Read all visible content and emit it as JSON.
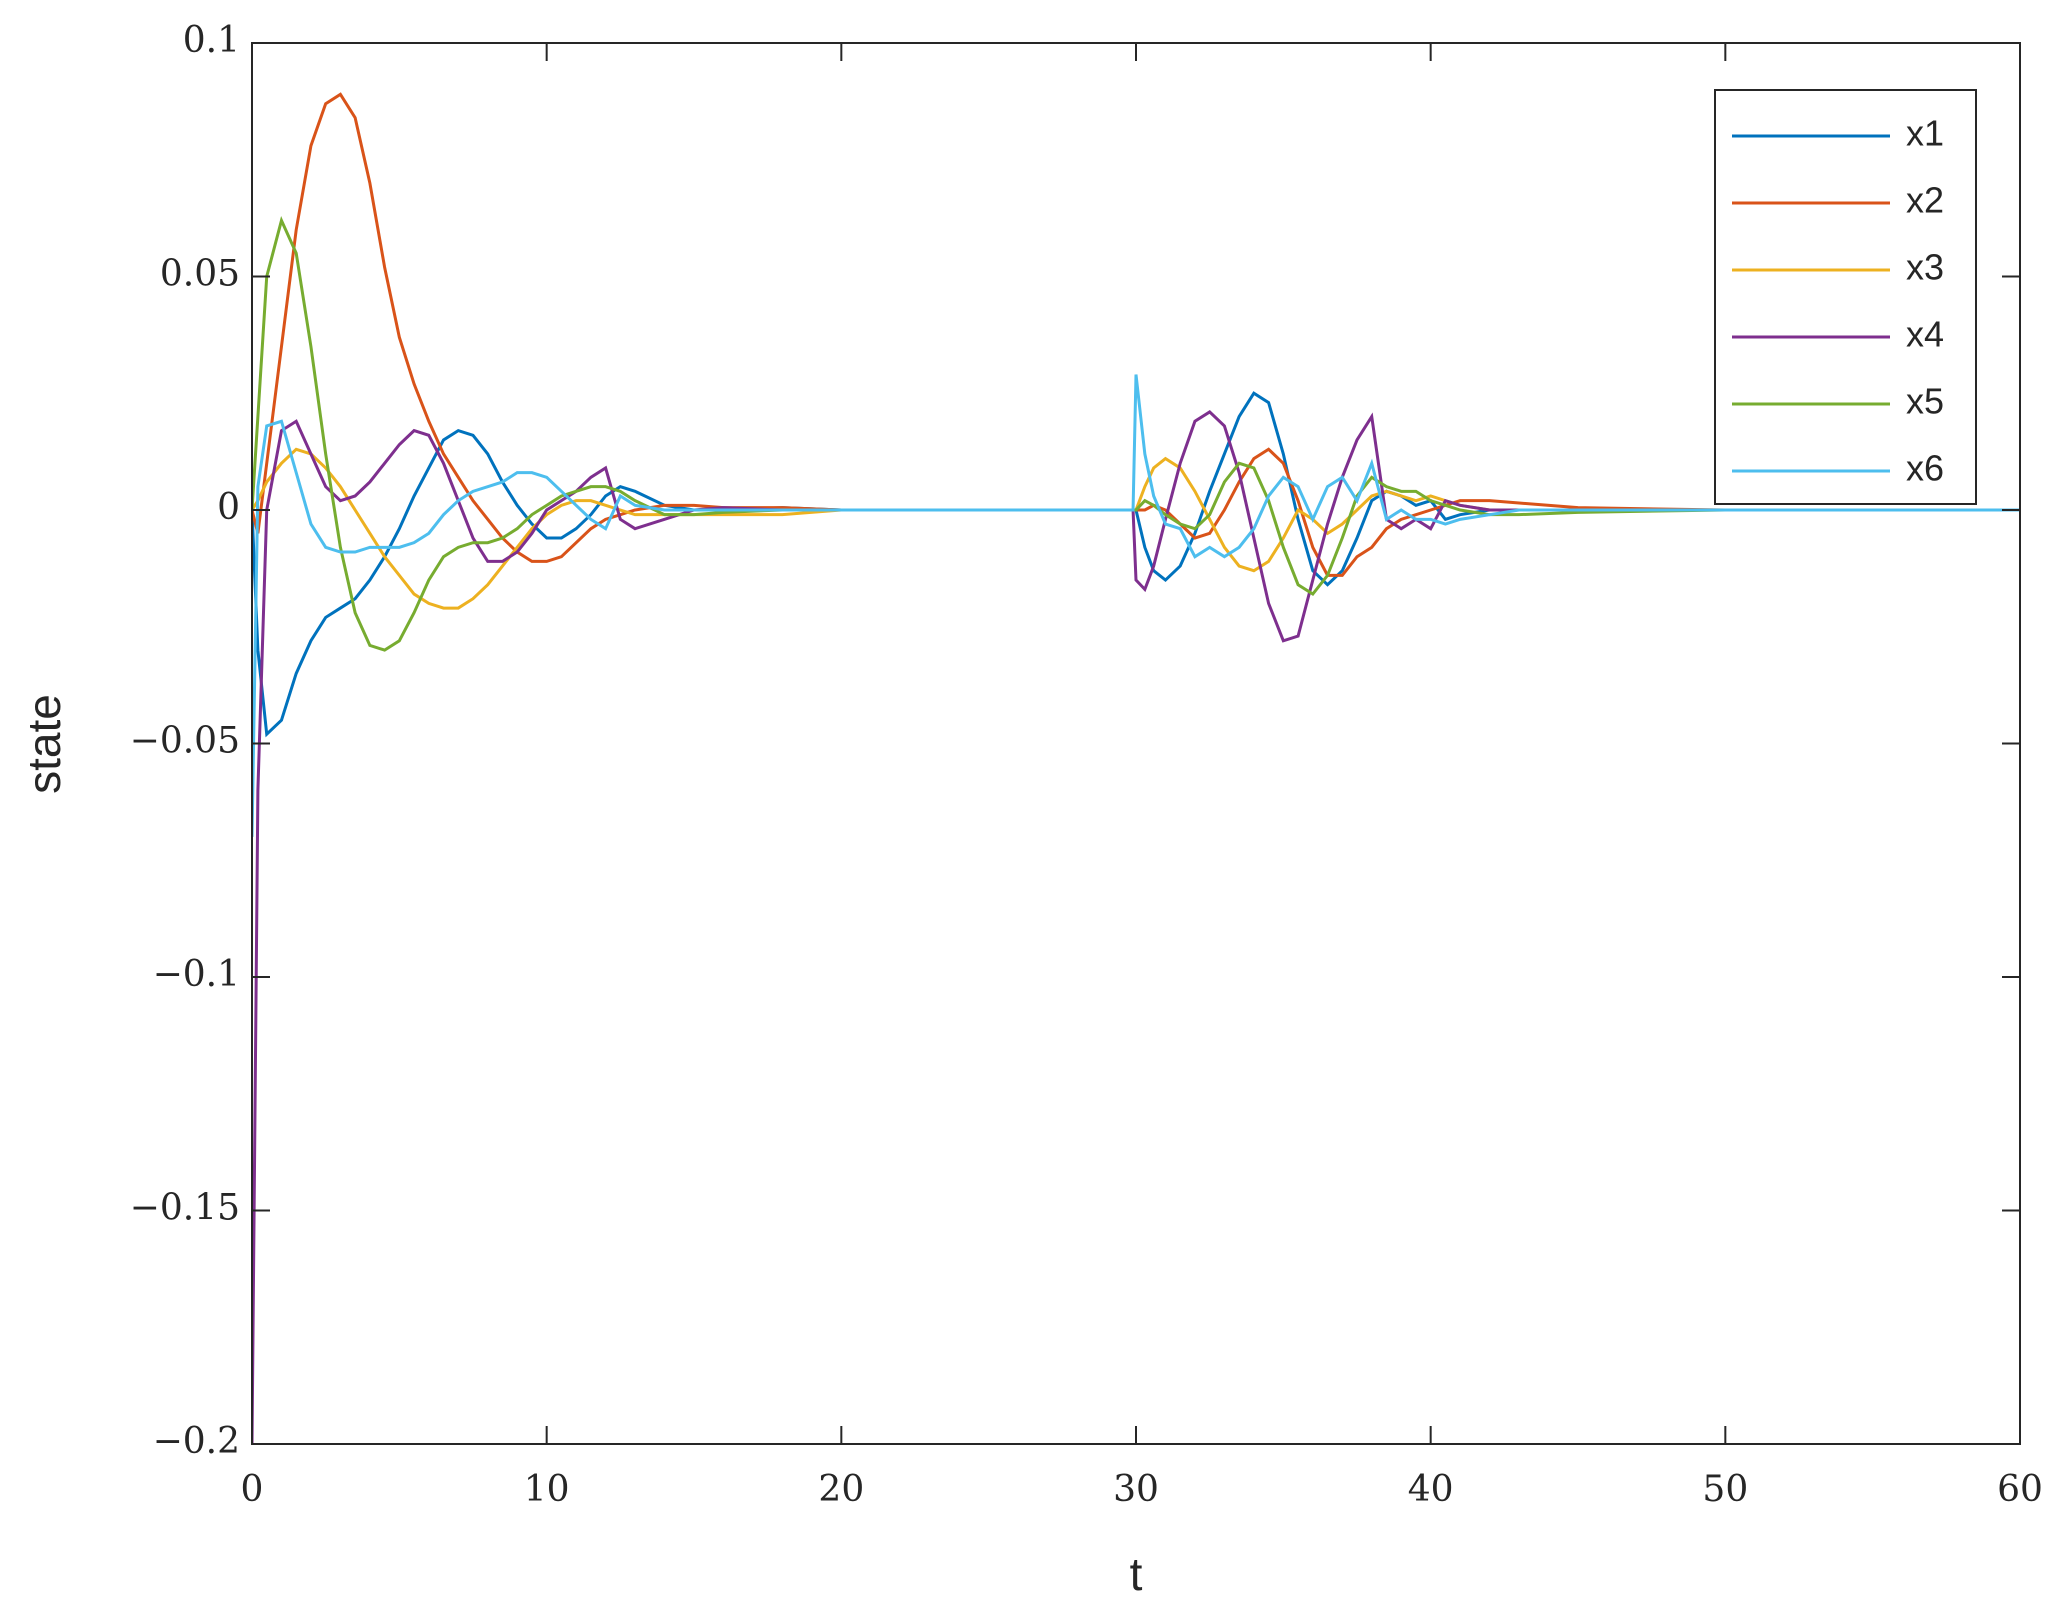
{
  "chart_data": {
    "type": "line",
    "xlabel": "t",
    "ylabel": "state",
    "x": [
      0,
      0.2,
      0.5,
      1,
      1.5,
      2,
      2.5,
      3,
      3.5,
      4,
      4.5,
      5,
      5.5,
      6,
      6.5,
      7,
      7.5,
      8,
      8.5,
      9,
      9.5,
      10,
      10.5,
      11,
      11.5,
      12,
      12.5,
      13,
      14,
      15,
      16,
      18,
      20,
      25,
      29.9,
      30,
      30.3,
      30.6,
      31,
      31.5,
      32,
      32.5,
      33,
      33.5,
      34,
      34.5,
      35,
      35.5,
      36,
      36.5,
      37,
      37.5,
      38,
      38.5,
      39,
      39.5,
      40,
      40.5,
      41,
      42,
      43,
      45,
      50,
      60
    ],
    "series": [
      {
        "name": "x1",
        "color": "#0072BD",
        "values": [
          0,
          -0.03,
          -0.048,
          -0.045,
          -0.035,
          -0.028,
          -0.023,
          -0.021,
          -0.019,
          -0.015,
          -0.01,
          -0.004,
          0.003,
          0.009,
          0.015,
          0.017,
          0.016,
          0.012,
          0.006,
          0.001,
          -0.003,
          -0.006,
          -0.006,
          -0.004,
          -0.001,
          0.003,
          0.005,
          0.004,
          0.001,
          0,
          0,
          0.0005,
          0,
          0,
          0,
          0,
          -0.008,
          -0.013,
          -0.015,
          -0.012,
          -0.005,
          0.004,
          0.012,
          0.02,
          0.025,
          0.023,
          0.012,
          -0.002,
          -0.013,
          -0.016,
          -0.013,
          -0.006,
          0.002,
          0.004,
          0.003,
          0.001,
          0.002,
          -0.002,
          -0.001,
          0,
          0,
          0,
          0,
          0
        ]
      },
      {
        "name": "x2",
        "color": "#D95319",
        "values": [
          0,
          -0.005,
          0.01,
          0.035,
          0.06,
          0.078,
          0.087,
          0.089,
          0.084,
          0.07,
          0.052,
          0.037,
          0.027,
          0.019,
          0.012,
          0.007,
          0.002,
          -0.002,
          -0.006,
          -0.009,
          -0.011,
          -0.011,
          -0.01,
          -0.007,
          -0.004,
          -0.002,
          -0.001,
          0,
          0.001,
          0.001,
          0.0005,
          0.0005,
          0,
          0,
          0,
          0,
          0,
          0.001,
          0,
          -0.003,
          -0.006,
          -0.005,
          0,
          0.006,
          0.011,
          0.013,
          0.01,
          0.002,
          -0.008,
          -0.014,
          -0.014,
          -0.01,
          -0.008,
          -0.004,
          -0.002,
          -0.001,
          0,
          0.001,
          0.002,
          0.002,
          0.0015,
          0.0005,
          0,
          0
        ]
      },
      {
        "name": "x3",
        "color": "#EDB120",
        "values": [
          0,
          0.002,
          0.006,
          0.01,
          0.013,
          0.012,
          0.009,
          0.005,
          0,
          -0.005,
          -0.01,
          -0.014,
          -0.018,
          -0.02,
          -0.021,
          -0.021,
          -0.019,
          -0.016,
          -0.012,
          -0.008,
          -0.004,
          -0.001,
          0.001,
          0.002,
          0.002,
          0.001,
          0,
          -0.001,
          -0.001,
          -0.001,
          -0.001,
          -0.001,
          0,
          0,
          0,
          0,
          0.005,
          0.009,
          0.011,
          0.009,
          0.004,
          -0.002,
          -0.008,
          -0.012,
          -0.013,
          -0.011,
          -0.006,
          0,
          -0.002,
          -0.005,
          -0.003,
          0,
          0.003,
          0.004,
          0.003,
          0.002,
          0.003,
          0.002,
          0.001,
          0,
          0,
          0,
          0,
          0
        ]
      },
      {
        "name": "x4",
        "color": "#7E2F8E",
        "values": [
          -0.2,
          -0.06,
          0,
          0.017,
          0.019,
          0.012,
          0.005,
          0.002,
          0.003,
          0.006,
          0.01,
          0.014,
          0.017,
          0.016,
          0.01,
          0.002,
          -0.006,
          -0.011,
          -0.011,
          -0.009,
          -0.005,
          0,
          0.002,
          0.004,
          0.007,
          0.009,
          -0.002,
          -0.004,
          -0.002,
          0,
          0.0005,
          0,
          0,
          0,
          0,
          -0.015,
          -0.017,
          -0.012,
          -0.002,
          0.01,
          0.019,
          0.021,
          0.018,
          0.008,
          -0.006,
          -0.02,
          -0.028,
          -0.027,
          -0.015,
          -0.003,
          0.007,
          0.015,
          0.02,
          -0.002,
          -0.004,
          -0.002,
          -0.004,
          0.002,
          0.001,
          0,
          0,
          0,
          0,
          0
        ]
      },
      {
        "name": "x5",
        "color": "#77AC30",
        "values": [
          0,
          0.02,
          0.05,
          0.062,
          0.055,
          0.035,
          0.012,
          -0.008,
          -0.022,
          -0.029,
          -0.03,
          -0.028,
          -0.022,
          -0.015,
          -0.01,
          -0.008,
          -0.007,
          -0.007,
          -0.006,
          -0.004,
          -0.001,
          0.001,
          0.003,
          0.004,
          0.005,
          0.005,
          0.004,
          0.002,
          -0.001,
          -0.001,
          -0.0005,
          0,
          0,
          0,
          0,
          0,
          0.002,
          0.001,
          -0.001,
          -0.003,
          -0.004,
          -0.001,
          0.006,
          0.01,
          0.009,
          0.002,
          -0.008,
          -0.016,
          -0.018,
          -0.014,
          -0.006,
          0.003,
          0.007,
          0.005,
          0.004,
          0.004,
          0.002,
          0.001,
          0,
          -0.001,
          -0.001,
          -0.0005,
          0,
          0
        ]
      },
      {
        "name": "x6",
        "color": "#4DBEEE",
        "values": [
          -0.07,
          0.005,
          0.018,
          0.019,
          0.008,
          -0.003,
          -0.008,
          -0.009,
          -0.009,
          -0.008,
          -0.008,
          -0.008,
          -0.007,
          -0.005,
          -0.001,
          0.002,
          0.004,
          0.005,
          0.006,
          0.008,
          0.008,
          0.007,
          0.004,
          0.001,
          -0.002,
          -0.004,
          0.003,
          0.001,
          0,
          0,
          0,
          0,
          0,
          0,
          0,
          0.029,
          0.012,
          0.003,
          -0.003,
          -0.004,
          -0.01,
          -0.008,
          -0.01,
          -0.008,
          -0.004,
          0.003,
          0.007,
          0.005,
          -0.002,
          0.005,
          0.007,
          0.002,
          0.01,
          -0.002,
          0,
          -0.002,
          -0.002,
          -0.003,
          -0.002,
          -0.001,
          0,
          0,
          0,
          0
        ]
      }
    ],
    "xlim": [
      0,
      60
    ],
    "xticks": [
      0,
      10,
      20,
      30,
      40,
      50,
      60
    ],
    "ylim": [
      -0.2,
      0.1
    ],
    "yticks": [
      {
        "value": -0.2,
        "label": "−0.2"
      },
      {
        "value": -0.15,
        "label": "−0.15"
      },
      {
        "value": -0.1,
        "label": "−0.1"
      },
      {
        "value": -0.05,
        "label": "−0.05"
      },
      0,
      0.05,
      0.1
    ],
    "legend_position": "upper right",
    "grid": false
  }
}
